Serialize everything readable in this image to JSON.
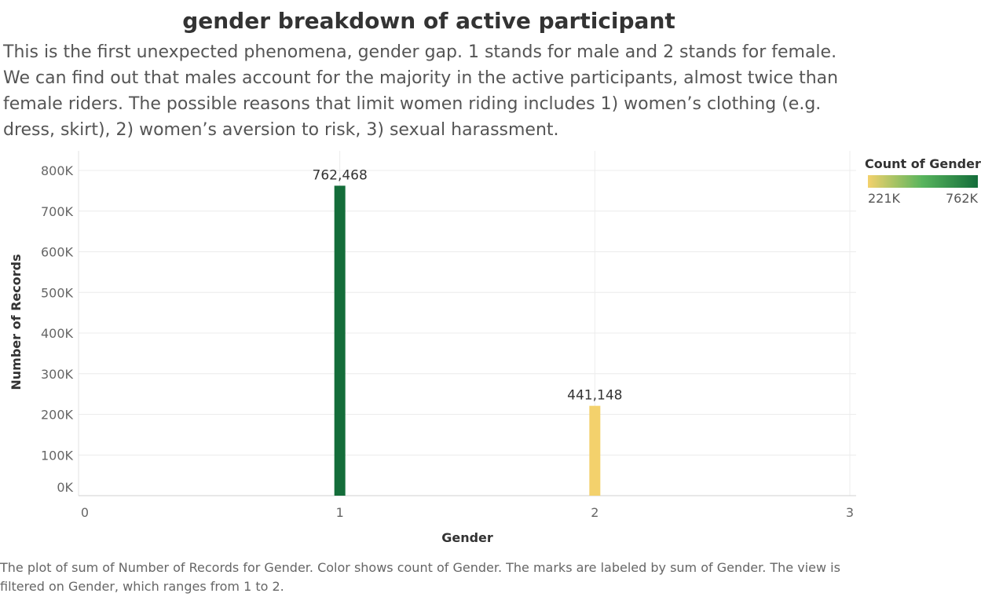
{
  "header": {
    "title": "gender breakdown of active participant",
    "description": "This is the first unexpected phenomena, gender gap. 1 stands for male and 2 stands for female. We can find out that males account for the majority in the active participants, almost twice than female riders.  The possible reasons that limit women riding includes 1) women’s clothing (e.g. dress, skirt),  2) women’s aversion to risk,  3) sexual harassment."
  },
  "legend": {
    "title": "Count of Gender",
    "min_label": "221K",
    "max_label": "762K",
    "colors": [
      "#f3d16c",
      "#57b45d",
      "#146d3a"
    ]
  },
  "chart_data": {
    "type": "bar",
    "xlabel": "Gender",
    "ylabel": "Number of Records",
    "xlim": [
      0,
      3
    ],
    "ylim": [
      0,
      800000
    ],
    "x_ticks": [
      "0",
      "1",
      "2",
      "3"
    ],
    "y_ticks": [
      "0K",
      "100K",
      "200K",
      "300K",
      "400K",
      "500K",
      "600K",
      "700K",
      "800K"
    ],
    "grid": true,
    "legend_placement": "right",
    "bars": [
      {
        "x": 1,
        "value": 762468,
        "label": "762,468",
        "color": "#146d3a"
      },
      {
        "x": 2,
        "value": 221000,
        "label": "441,148",
        "color": "#f3d16c"
      }
    ]
  },
  "caption": "The plot of sum of Number of Records for Gender.  Color shows count of Gender.  The marks are labeled by sum of Gender. The view is filtered on Gender, which ranges from 1 to 2."
}
